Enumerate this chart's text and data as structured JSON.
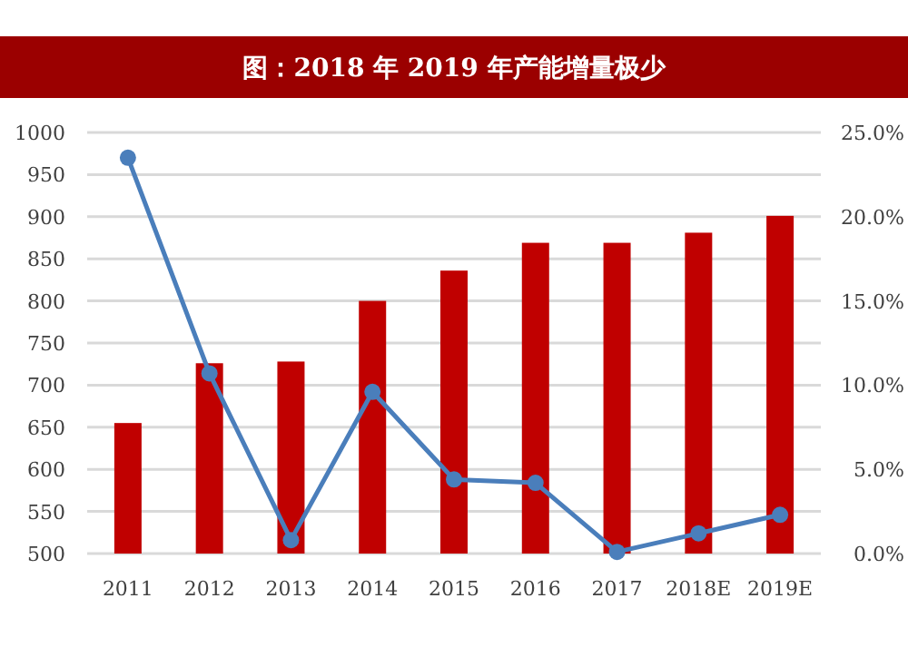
{
  "chart_data": {
    "type": "bar",
    "title": "图：2018 年 2019 年产能增量极少",
    "categories": [
      "2011",
      "2012",
      "2013",
      "2014",
      "2015",
      "2016",
      "2017",
      "2018E",
      "2019E"
    ],
    "series": [
      {
        "color": "#c00000",
        "values": [
          655,
          726,
          728,
          800,
          836,
          869,
          869,
          881,
          901
        ]
      },
      {
        "type": "line",
        "axis": "y2",
        "color": "#4a7ebb",
        "marker": "circle",
        "values": [
          23.5,
          10.7,
          0.8,
          9.6,
          4.4,
          4.2,
          0.1,
          1.2,
          2.3
        ]
      }
    ],
    "ylim": [
      500,
      1000
    ],
    "yticks": [
      500,
      550,
      600,
      650,
      700,
      750,
      800,
      850,
      900,
      950,
      1000
    ],
    "y2lim": [
      0,
      25
    ],
    "y2ticks": [
      {
        "value": 0,
        "label": "0.0%"
      },
      {
        "value": 5,
        "label": "5.0%"
      },
      {
        "value": 10,
        "label": "10.0%"
      },
      {
        "value": 15,
        "label": "15.0%"
      },
      {
        "value": 20,
        "label": "20.0%"
      },
      {
        "value": 25,
        "label": "25.0%"
      }
    ],
    "grid": "y"
  }
}
